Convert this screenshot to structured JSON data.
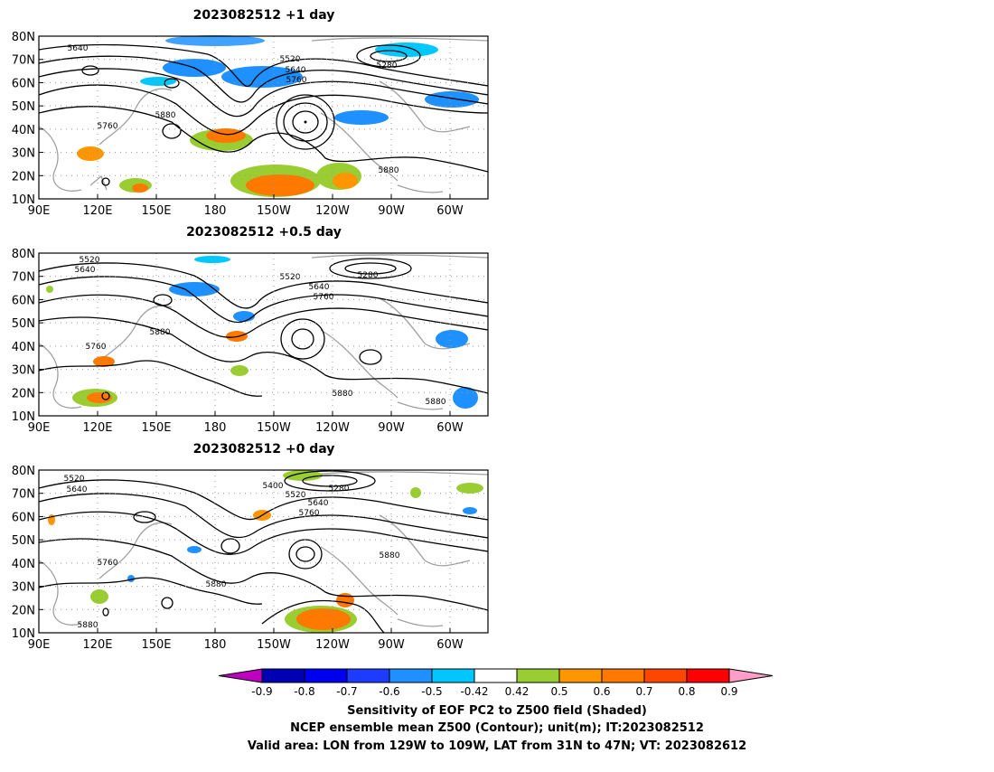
{
  "panels": [
    {
      "title": "2023082512  +1 day",
      "contour_labels": [
        "5640",
        "5520",
        "5640",
        "5760",
        "5280",
        "5760",
        "5880",
        "5880"
      ]
    },
    {
      "title": "2023082512  +0.5 day",
      "contour_labels": [
        "5520",
        "5640",
        "5520",
        "5280",
        "5640",
        "5760",
        "5880",
        "5760",
        "5880",
        "5880"
      ]
    },
    {
      "title": "2023082512  +0 day",
      "contour_labels": [
        "5520",
        "5640",
        "5400",
        "5520",
        "5280",
        "5640",
        "5760",
        "5760",
        "5880",
        "5880",
        "5880"
      ]
    }
  ],
  "lat_ticks": [
    "80N",
    "70N",
    "60N",
    "50N",
    "40N",
    "30N",
    "20N",
    "10N"
  ],
  "lon_ticks": [
    "90E",
    "120E",
    "150E",
    "180",
    "150W",
    "120W",
    "90W",
    "60W"
  ],
  "colorbar": {
    "tick_labels": [
      "-0.9",
      "-0.8",
      "-0.7",
      "-0.6",
      "-0.5",
      "-0.42",
      "0.42",
      "0.5",
      "0.6",
      "0.7",
      "0.8",
      "0.9"
    ],
    "colors": [
      "#c000c0",
      "#0000b4",
      "#0000f0",
      "#1e3cff",
      "#1e90ff",
      "#00c8ff",
      "#ffffff",
      "#9acd32",
      "#ff9600",
      "#ff7800",
      "#ff4600",
      "#ff0000",
      "#ff9ec8"
    ]
  },
  "caption": {
    "line1": "Sensitivity of EOF PC2 to Z500 field (Shaded)",
    "line2": "NCEP ensemble mean Z500 (Contour); unit(m); IT:2023082512",
    "line3": "Valid area: LON from 129W to 109W, LAT from 31N to 47N; VT: 2023082612"
  }
}
